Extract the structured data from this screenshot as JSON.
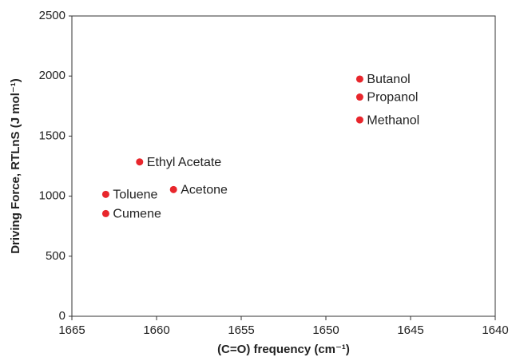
{
  "chart_data": {
    "type": "scatter",
    "x_label": "(C=O) frequency (cm⁻¹)",
    "y_label": "Driving Force, RTLnS (J mol⁻¹)",
    "labels": [
      "Butanol",
      "Propanol",
      "Methanol",
      "Ethyl Acetate",
      "Toluene",
      "Acetone",
      "Cumene"
    ],
    "x": [
      1648,
      1648,
      1648,
      1661,
      1663,
      1659,
      1663
    ],
    "y": [
      1975,
      1825,
      1635,
      1285,
      1015,
      1055,
      855
    ],
    "color": "#e8262c",
    "xlim": [
      1665,
      1640
    ],
    "xticks": [
      1665,
      1660,
      1655,
      1650,
      1645,
      1640
    ],
    "ylim": [
      0,
      2500
    ],
    "yticks": [
      0,
      500,
      1000,
      1500,
      2000,
      2500
    ]
  }
}
